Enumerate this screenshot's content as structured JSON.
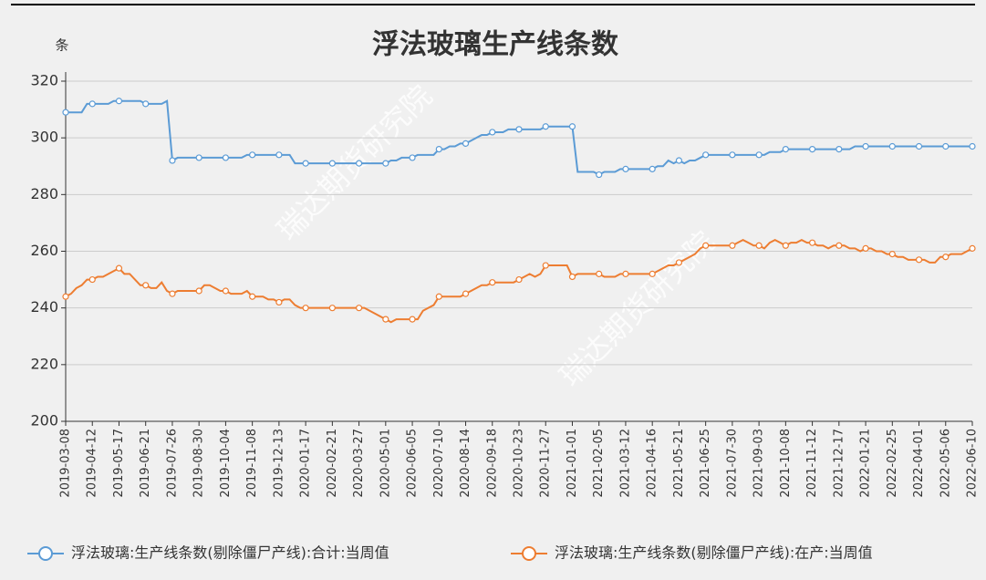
{
  "chart_data": {
    "type": "line",
    "title": "浮法玻璃生产线条数",
    "y_unit_label": "条",
    "watermark": "瑞达期货研究院",
    "categories": [
      "2019-03-08",
      null,
      null,
      null,
      null,
      "2019-04-12",
      null,
      null,
      null,
      null,
      "2019-05-17",
      null,
      null,
      null,
      null,
      "2019-06-21",
      null,
      null,
      null,
      null,
      "2019-07-26",
      null,
      null,
      null,
      null,
      "2019-08-30",
      null,
      null,
      null,
      null,
      "2019-10-04",
      null,
      null,
      null,
      null,
      "2019-11-08",
      null,
      null,
      null,
      null,
      "2019-12-13",
      null,
      null,
      null,
      null,
      "2020-01-17",
      null,
      null,
      null,
      null,
      "2020-02-21",
      null,
      null,
      null,
      null,
      "2020-03-27",
      null,
      null,
      null,
      null,
      "2020-05-01",
      null,
      null,
      null,
      null,
      "2020-06-05",
      null,
      null,
      null,
      null,
      "2020-07-10",
      null,
      null,
      null,
      null,
      "2020-08-14",
      null,
      null,
      null,
      null,
      "2020-09-18",
      null,
      null,
      null,
      null,
      "2020-10-23",
      null,
      null,
      null,
      null,
      "2020-11-27",
      null,
      null,
      null,
      null,
      "2021-01-01",
      null,
      null,
      null,
      null,
      "2021-02-05",
      null,
      null,
      null,
      null,
      "2021-03-12",
      null,
      null,
      null,
      null,
      "2021-04-16",
      null,
      null,
      null,
      null,
      "2021-05-21",
      null,
      null,
      null,
      null,
      "2021-06-25",
      null,
      null,
      null,
      null,
      "2021-07-30",
      null,
      null,
      null,
      null,
      "2021-09-03",
      null,
      null,
      null,
      null,
      "2021-10-08",
      null,
      null,
      null,
      null,
      "2021-11-12",
      null,
      null,
      null,
      null,
      "2021-12-17",
      null,
      null,
      null,
      null,
      "2022-01-21",
      null,
      null,
      null,
      null,
      "2022-02-25",
      null,
      null,
      null,
      null,
      "2022-04-01",
      null,
      null,
      null,
      null,
      "2022-05-06",
      null,
      null,
      null,
      null,
      "2022-06-10"
    ],
    "series": [
      {
        "name": "浮法玻璃:生产线条数(剔除僵尸产线):合计:当周值",
        "color": "#5b9bd5",
        "values": [
          309,
          309,
          309,
          309,
          312,
          312,
          312,
          312,
          312,
          313,
          313,
          313,
          313,
          313,
          313,
          312,
          312,
          312,
          312,
          313,
          292,
          293,
          293,
          293,
          293,
          293,
          293,
          293,
          293,
          293,
          293,
          293,
          293,
          293,
          294,
          294,
          294,
          294,
          294,
          294,
          294,
          294,
          294,
          291,
          291,
          291,
          291,
          291,
          291,
          291,
          291,
          291,
          291,
          291,
          291,
          291,
          291,
          291,
          291,
          291,
          291,
          292,
          292,
          293,
          293,
          293,
          294,
          294,
          294,
          294,
          296,
          296,
          297,
          297,
          298,
          298,
          299,
          300,
          301,
          301,
          302,
          302,
          302,
          303,
          303,
          303,
          303,
          303,
          303,
          303,
          304,
          304,
          304,
          304,
          304,
          304,
          288,
          288,
          288,
          288,
          287,
          288,
          288,
          288,
          289,
          289,
          289,
          289,
          289,
          289,
          289,
          290,
          290,
          292,
          291,
          292,
          291,
          292,
          292,
          293,
          294,
          294,
          294,
          294,
          294,
          294,
          294,
          294,
          294,
          294,
          294,
          294,
          295,
          295,
          295,
          296,
          296,
          296,
          296,
          296,
          296,
          296,
          296,
          296,
          296,
          296,
          296,
          296,
          297,
          297,
          297,
          297,
          297,
          297,
          297,
          297,
          297,
          297,
          297,
          297,
          297,
          297,
          297,
          297,
          297,
          297,
          297,
          297,
          297,
          297,
          297
        ]
      },
      {
        "name": "浮法玻璃:生产线条数(剔除僵尸产线):在产:当周值",
        "color": "#ed7d31",
        "values": [
          244,
          245,
          247,
          248,
          250,
          250,
          251,
          251,
          252,
          253,
          254,
          252,
          252,
          250,
          248,
          248,
          247,
          247,
          249,
          246,
          245,
          246,
          246,
          246,
          246,
          246,
          248,
          248,
          247,
          246,
          246,
          245,
          245,
          245,
          246,
          244,
          244,
          244,
          243,
          243,
          242,
          243,
          243,
          241,
          240,
          240,
          240,
          240,
          240,
          240,
          240,
          240,
          240,
          240,
          240,
          240,
          240,
          239,
          238,
          237,
          236,
          235,
          236,
          236,
          236,
          236,
          236,
          239,
          240,
          241,
          244,
          244,
          244,
          244,
          244,
          245,
          246,
          247,
          248,
          248,
          249,
          249,
          249,
          249,
          249,
          250,
          251,
          252,
          251,
          252,
          255,
          255,
          255,
          255,
          255,
          251,
          252,
          252,
          252,
          252,
          252,
          251,
          251,
          251,
          252,
          252,
          252,
          252,
          252,
          252,
          252,
          253,
          254,
          255,
          255,
          256,
          257,
          258,
          259,
          261,
          262,
          262,
          262,
          262,
          262,
          262,
          263,
          264,
          263,
          262,
          262,
          261,
          263,
          264,
          263,
          262,
          263,
          263,
          264,
          263,
          263,
          262,
          262,
          261,
          262,
          262,
          262,
          261,
          261,
          260,
          261,
          261,
          260,
          260,
          259,
          259,
          258,
          258,
          257,
          257,
          257,
          257,
          256,
          256,
          258,
          258,
          259,
          259,
          259,
          260,
          261
        ]
      }
    ],
    "ylim": [
      200,
      320
    ],
    "yticks": [
      200,
      220,
      240,
      260,
      280,
      300,
      320
    ],
    "grid": true,
    "legend": "bottom"
  }
}
